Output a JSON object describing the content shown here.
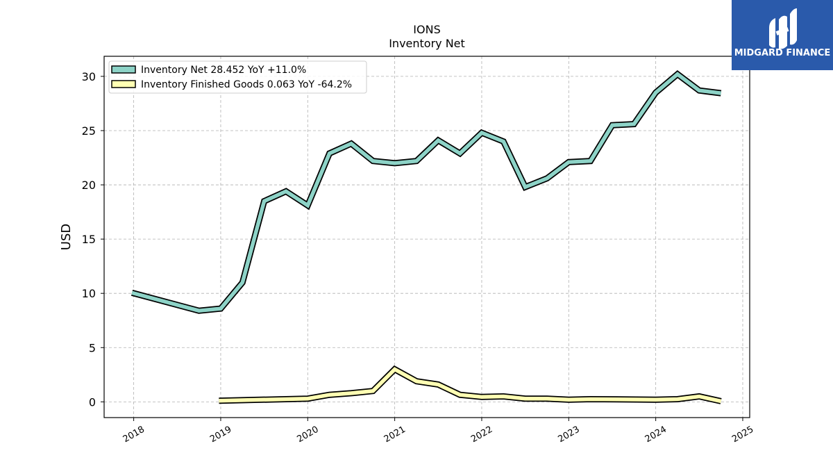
{
  "chart_data": {
    "type": "line",
    "title": "IONS",
    "subtitle": "Inventory Net",
    "ylabel": "USD",
    "xlabel": "",
    "xlim": [
      2017.66,
      2025.08
    ],
    "ylim": [
      -1.45,
      31.85
    ],
    "yticks": [
      0,
      5,
      10,
      15,
      20,
      25,
      30
    ],
    "xticks": [
      2018,
      2019,
      2020,
      2021,
      2022,
      2023,
      2024,
      2025
    ],
    "grid": true,
    "legend_position": "top-left",
    "series": [
      {
        "name": "Inventory Net",
        "legend_label": "Inventory Net  28.452 YoY +11.0%",
        "color": "#8dd3c7",
        "x": [
          2017.98,
          2018.75,
          2019.0,
          2019.25,
          2019.5,
          2019.75,
          2020.0,
          2020.25,
          2020.5,
          2020.75,
          2021.0,
          2021.25,
          2021.5,
          2021.75,
          2022.0,
          2022.25,
          2022.5,
          2022.75,
          2023.0,
          2023.25,
          2023.5,
          2023.75,
          2024.0,
          2024.25,
          2024.5,
          2024.75
        ],
        "y": [
          10.05,
          8.4,
          8.6,
          11.0,
          18.5,
          19.4,
          18.1,
          22.9,
          23.8,
          22.2,
          22.0,
          22.2,
          24.1,
          22.9,
          24.8,
          24.0,
          19.8,
          20.6,
          22.1,
          22.2,
          25.5,
          25.6,
          28.5,
          30.2,
          28.7,
          28.45
        ]
      },
      {
        "name": "Inventory Finished Goods",
        "legend_label": "Inventory Finished Goods  0.063 YoY -64.2%",
        "color": "#ffffb3",
        "x": [
          2018.98,
          2020.0,
          2020.25,
          2020.5,
          2020.75,
          2021.0,
          2021.25,
          2021.5,
          2021.75,
          2022.0,
          2022.25,
          2022.5,
          2022.75,
          2023.0,
          2023.25,
          2024.0,
          2024.25,
          2024.5,
          2024.75
        ],
        "y": [
          0.1,
          0.3,
          0.65,
          0.8,
          1.0,
          3.0,
          1.9,
          1.6,
          0.65,
          0.45,
          0.5,
          0.3,
          0.3,
          0.2,
          0.25,
          0.2,
          0.25,
          0.5,
          0.06
        ]
      }
    ]
  },
  "branding": {
    "logo_text": "MIDGARD FINANCE",
    "logo_bg": "#2a5aab"
  }
}
